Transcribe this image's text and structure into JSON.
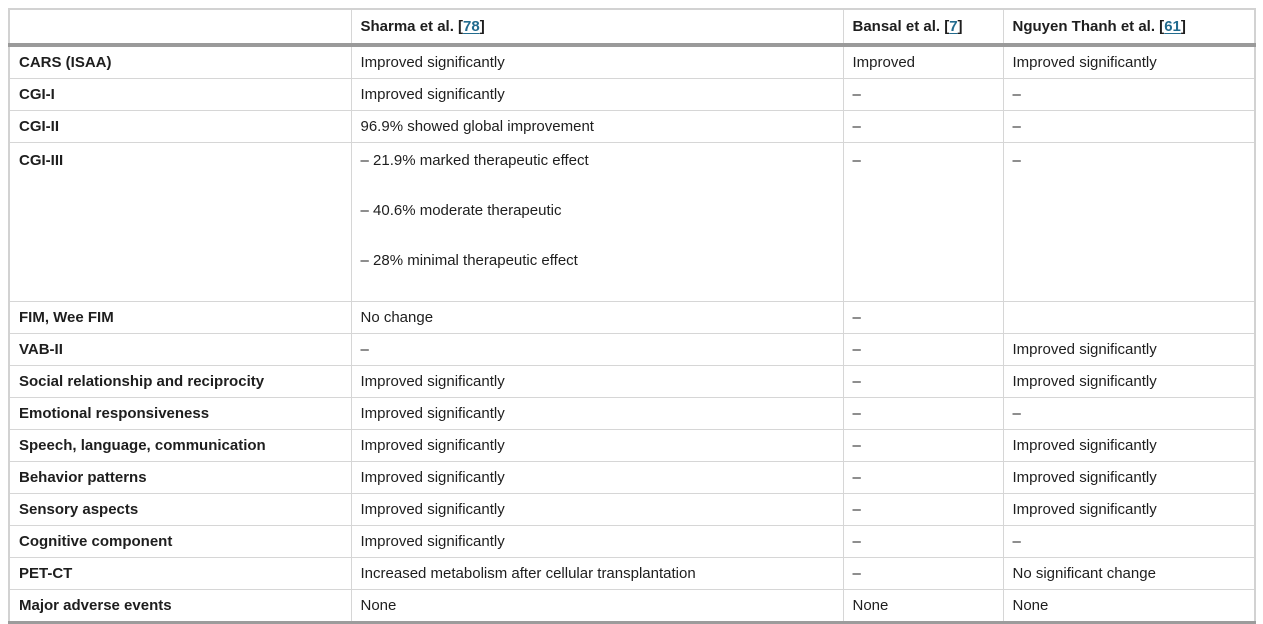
{
  "colors": {
    "text": "#1e1e1e",
    "reference_link": "#226b8e",
    "cell_border": "#d6d6d6",
    "header_rule": "#9a9a9a",
    "bottom_rule": "#9c9c9c",
    "background": "#ffffff"
  },
  "table": {
    "header": {
      "label_col": "",
      "sharma": {
        "prefix": "Sharma et al. [",
        "ref": "78",
        "suffix": "]"
      },
      "bansal": {
        "prefix": "Bansal et al. [",
        "ref": "7",
        "suffix": "]"
      },
      "nguyen": {
        "prefix": "Nguyen Thanh et al. [",
        "ref": "61",
        "suffix": "]"
      }
    },
    "rows": [
      {
        "label": "CARS (ISAA)",
        "sharma": "Improved significantly",
        "bansal": "Improved",
        "nguyen": "Improved significantly"
      },
      {
        "label": "CGI-I",
        "sharma": "Improved significantly",
        "bansal": "–",
        "nguyen": "–"
      },
      {
        "label": "CGI-II",
        "sharma": "96.9% showed global improvement",
        "bansal": "–",
        "nguyen": "–"
      },
      {
        "label": "CGI-III",
        "sharma_lines": [
          "– 21.9% marked therapeutic effect",
          "– 40.6% moderate therapeutic",
          "– 28% minimal therapeutic effect"
        ],
        "bansal": "–",
        "nguyen": "–"
      },
      {
        "label": "FIM, Wee FIM",
        "sharma": "No change",
        "bansal": "–",
        "nguyen": ""
      },
      {
        "label": "VAB-II",
        "sharma": "–",
        "bansal": "–",
        "nguyen": "Improved significantly"
      },
      {
        "label": "Social relationship and reciprocity",
        "sharma": "Improved significantly",
        "bansal": "–",
        "nguyen": "Improved significantly"
      },
      {
        "label": "Emotional responsiveness",
        "sharma": "Improved significantly",
        "bansal": "–",
        "nguyen": "–"
      },
      {
        "label": "Speech, language, communication",
        "sharma": "Improved significantly",
        "bansal": "–",
        "nguyen": "Improved significantly"
      },
      {
        "label": "Behavior patterns",
        "sharma": "Improved significantly",
        "bansal": "–",
        "nguyen": "Improved significantly"
      },
      {
        "label": "Sensory aspects",
        "sharma": "Improved significantly",
        "bansal": "–",
        "nguyen": "Improved significantly"
      },
      {
        "label": "Cognitive component",
        "sharma": "Improved significantly",
        "bansal": "–",
        "nguyen": "–"
      },
      {
        "label": "PET-CT",
        "sharma": "Increased metabolism after cellular transplantation",
        "bansal": "–",
        "nguyen": "No significant change"
      },
      {
        "label": "Major adverse events",
        "sharma": "None",
        "bansal": "None",
        "nguyen": "None"
      }
    ]
  }
}
